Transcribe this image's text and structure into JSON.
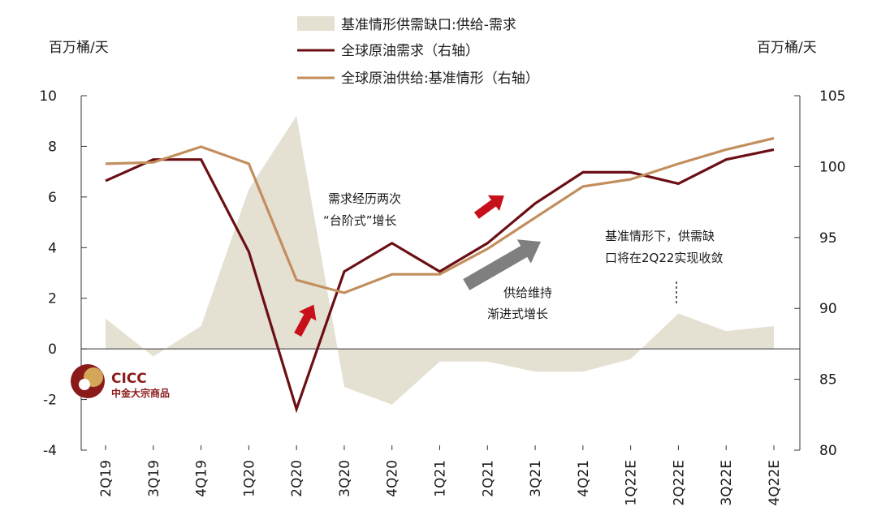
{
  "chart_data": {
    "type": "line",
    "categories": [
      "2Q19",
      "3Q19",
      "4Q19",
      "1Q20",
      "2Q20",
      "3Q20",
      "4Q20",
      "1Q21",
      "2Q21",
      "3Q21",
      "4Q21",
      "1Q22E",
      "2Q22E",
      "3Q22E",
      "4Q22E"
    ],
    "y_left": {
      "unit": "百万桶/天",
      "ylim": [
        -4,
        10
      ],
      "ticks": [
        -4,
        -2,
        0,
        2,
        4,
        6,
        8,
        10
      ]
    },
    "y_right": {
      "unit": "百万桶/天",
      "ylim": [
        80,
        105
      ],
      "ticks": [
        80,
        85,
        90,
        95,
        100,
        105
      ]
    },
    "series": [
      {
        "name": "基准情形供需缺口:供给-需求",
        "kind": "area",
        "axis": "left",
        "color": "#e4e0d2",
        "values": [
          1.2,
          -0.3,
          0.9,
          6.3,
          9.2,
          -1.5,
          -2.2,
          -0.5,
          -0.5,
          -0.9,
          -0.9,
          -0.4,
          1.4,
          0.7,
          0.9
        ]
      },
      {
        "name": "全球原油需求（右轴）",
        "kind": "line",
        "axis": "right",
        "color": "#6b0f14",
        "values": [
          99.0,
          100.5,
          100.5,
          94.0,
          82.9,
          92.6,
          94.6,
          92.6,
          94.6,
          97.4,
          99.6,
          99.6,
          98.8,
          100.5,
          101.2
        ]
      },
      {
        "name": "全球原油供给:基准情形（右轴）",
        "kind": "line",
        "axis": "right",
        "color": "#c38e5e",
        "values": [
          100.2,
          100.3,
          101.4,
          100.2,
          92.0,
          91.1,
          92.4,
          92.4,
          94.2,
          96.4,
          98.6,
          99.1,
          100.2,
          101.2,
          102.0
        ]
      }
    ],
    "annotations": [
      {
        "lines": [
          "需求经历两次",
          "“台阶式”增长"
        ]
      },
      {
        "lines": [
          "供给维持",
          "渐进式增长"
        ]
      },
      {
        "lines": [
          "基准情形下，供需缺",
          "口将在2Q22实现收敛"
        ]
      }
    ],
    "legend": "top-center",
    "grid": false
  },
  "logo": {
    "en": "CICC",
    "cn": "中金大宗商品"
  },
  "colors": {
    "arrow_red": "#c8101a",
    "arrow_gray": "#7f7f7f",
    "logo": "#8b1a1a"
  }
}
